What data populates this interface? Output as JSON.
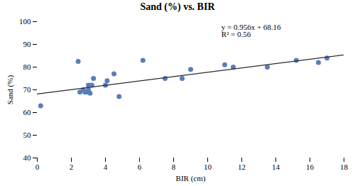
{
  "chart_data": {
    "type": "scatter",
    "title": "Sand (%) vs. BIR",
    "x_label": "BIR (cm)",
    "y_label": "Sand (%)",
    "xlim": [
      0,
      18
    ],
    "ylim": [
      40,
      100
    ],
    "xticks": [
      0,
      2,
      4,
      6,
      8,
      10,
      12,
      14,
      16,
      18
    ],
    "yticks": [
      40,
      50,
      60,
      70,
      80,
      90,
      100
    ],
    "grid": false,
    "series": [
      {
        "type": "scatter",
        "color": "#5B7DBB",
        "x": [
          0.2,
          2.4,
          2.5,
          2.7,
          2.8,
          2.9,
          3.0,
          3.0,
          3.1,
          3.2,
          3.3,
          4.0,
          4.1,
          4.5,
          4.8,
          6.2,
          7.5,
          8.5,
          9.0,
          11.0,
          11.5,
          13.5,
          15.2,
          16.5,
          17.0
        ],
        "values": [
          63,
          82.5,
          69,
          70,
          69,
          69,
          70,
          72,
          68.5,
          72,
          75,
          72,
          74,
          77,
          67,
          83,
          75,
          75,
          79,
          81,
          80,
          80,
          83,
          82,
          84
        ]
      },
      {
        "type": "line",
        "color": "#2a2a2a",
        "x": [
          0,
          18
        ],
        "values": [
          68.16,
          85.368
        ]
      }
    ],
    "annotations": [
      {
        "text": "y = 0.956x + 68.16\nR² = 0.56",
        "x": 10.8,
        "y": 99
      }
    ]
  }
}
